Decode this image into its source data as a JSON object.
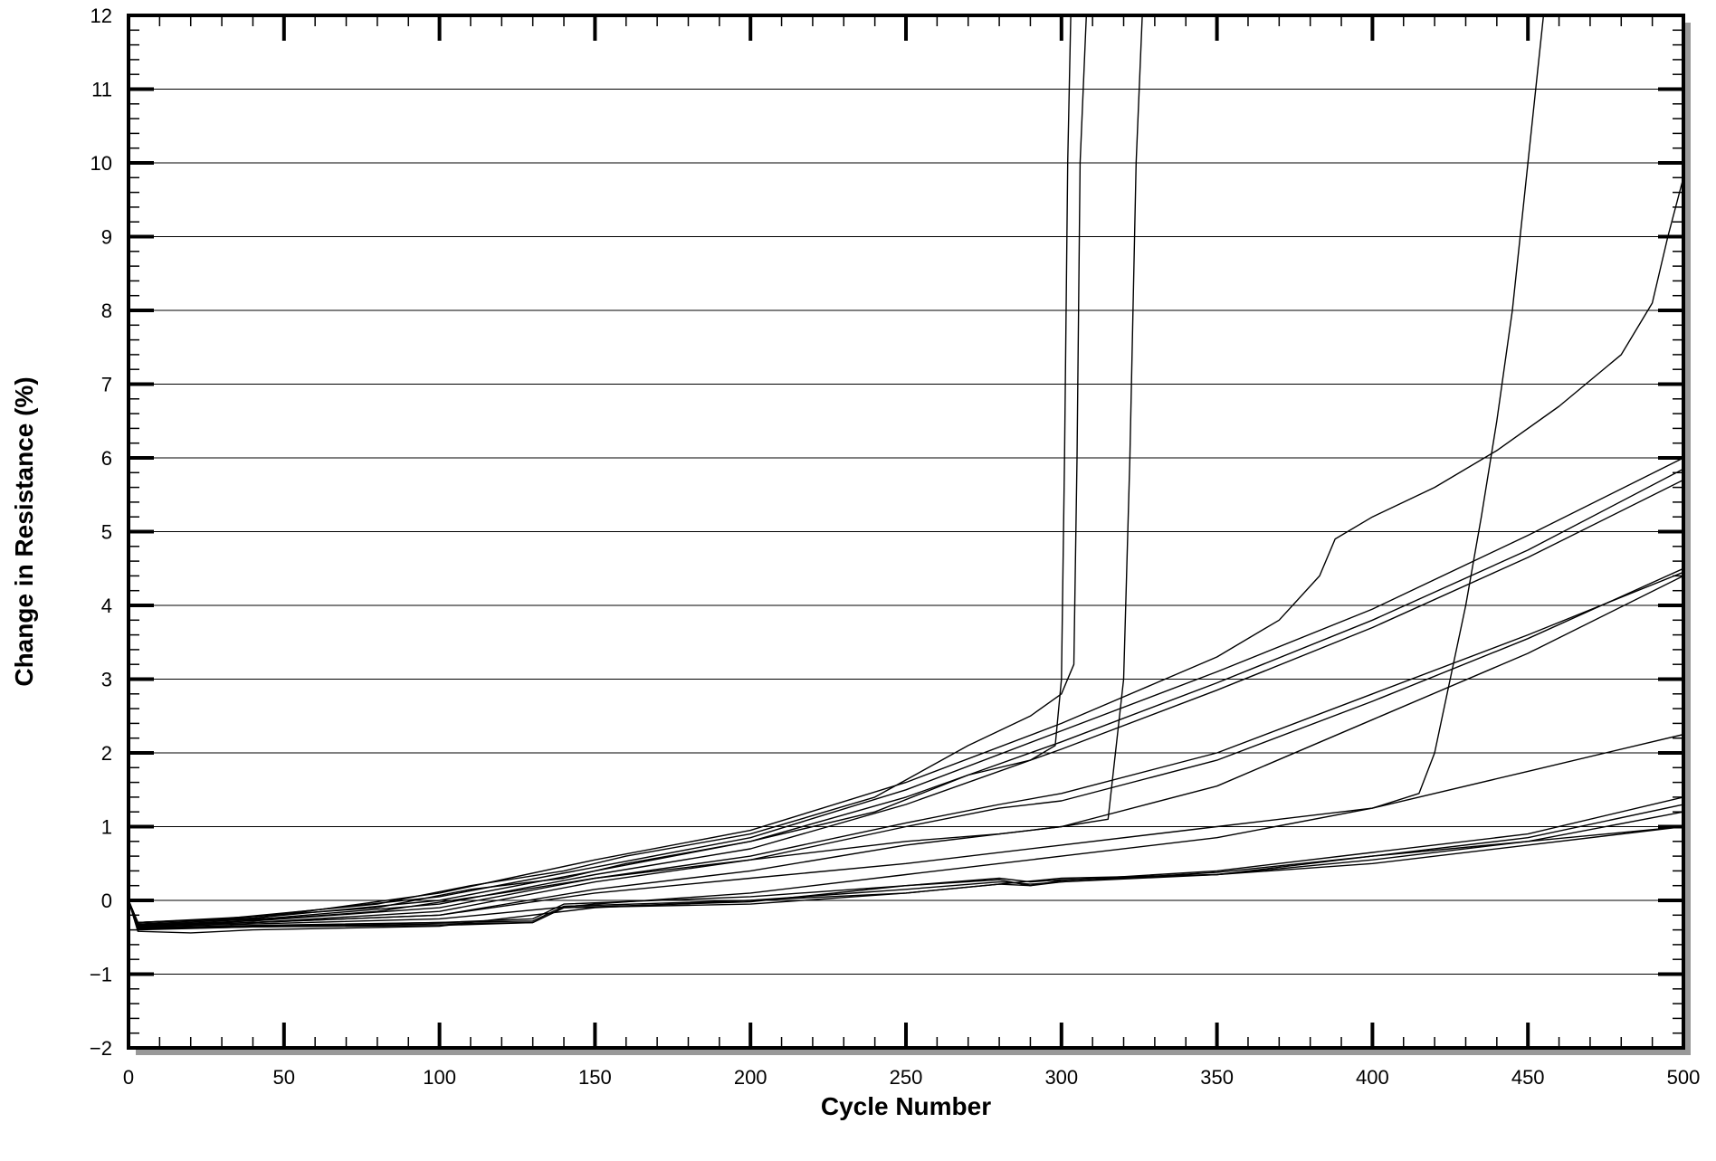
{
  "chart_data": {
    "type": "line",
    "title": "",
    "xlabel": "Cycle Number",
    "ylabel": "Change in Resistance (%)",
    "xlim": [
      0,
      500
    ],
    "ylim": [
      -2,
      12
    ],
    "x_ticks": [
      0,
      50,
      100,
      150,
      200,
      250,
      300,
      350,
      400,
      450,
      500
    ],
    "y_ticks": [
      -2,
      -1,
      0,
      1,
      2,
      3,
      4,
      5,
      6,
      7,
      8,
      9,
      10,
      11,
      12
    ],
    "x_minor_step": 10,
    "y_minor_step": 0.2,
    "grid": {
      "horizontal": true,
      "vertical": false
    },
    "legend": "none",
    "colors": {
      "line": "#000000",
      "grid": "#000000",
      "frame": "#000000",
      "shadow": "#999999"
    },
    "series": [
      {
        "x": [
          0,
          3,
          30,
          80,
          110,
          140,
          160,
          200,
          240,
          270,
          290,
          300,
          304,
          305,
          306,
          308
        ],
        "y": [
          0,
          -0.3,
          -0.25,
          -0.05,
          0.2,
          0.4,
          0.6,
          0.9,
          1.4,
          2.1,
          2.5,
          2.8,
          3.2,
          6,
          10,
          12
        ]
      },
      {
        "x": [
          0,
          3,
          30,
          80,
          110,
          140,
          160,
          200,
          240,
          270,
          290,
          298,
          300,
          301,
          302,
          303
        ],
        "y": [
          0,
          -0.3,
          -0.25,
          -0.1,
          0.15,
          0.3,
          0.5,
          0.8,
          1.2,
          1.7,
          1.9,
          2.1,
          3,
          6,
          10,
          12
        ]
      },
      {
        "x": [
          0,
          3,
          30,
          80,
          120,
          150,
          200,
          250,
          280,
          300,
          315,
          320,
          322,
          324,
          326
        ],
        "y": [
          0,
          -0.35,
          -0.3,
          -0.15,
          0.1,
          0.3,
          0.55,
          0.8,
          0.9,
          1.0,
          1.1,
          3,
          6,
          10,
          12
        ]
      },
      {
        "x": [
          0,
          3,
          40,
          100,
          150,
          200,
          250,
          300,
          350,
          370,
          383,
          388,
          400,
          420,
          440,
          460,
          480,
          490,
          495,
          500
        ],
        "y": [
          0,
          -0.3,
          -0.25,
          0.1,
          0.55,
          0.95,
          1.6,
          2.4,
          3.3,
          3.8,
          4.4,
          4.9,
          5.2,
          5.6,
          6.1,
          6.7,
          7.4,
          8.1,
          9.0,
          9.8
        ]
      },
      {
        "x": [
          0,
          3,
          40,
          100,
          150,
          200,
          250,
          300,
          350,
          400,
          450,
          500
        ],
        "y": [
          0,
          -0.3,
          -0.22,
          0.05,
          0.45,
          0.85,
          1.5,
          2.3,
          3.1,
          3.95,
          4.95,
          6.0
        ]
      },
      {
        "x": [
          0,
          3,
          40,
          100,
          150,
          200,
          250,
          300,
          350,
          400,
          450,
          500
        ],
        "y": [
          0,
          -0.3,
          -0.24,
          0.0,
          0.4,
          0.8,
          1.4,
          2.15,
          2.95,
          3.8,
          4.75,
          5.85
        ]
      },
      {
        "x": [
          0,
          3,
          40,
          100,
          150,
          200,
          250,
          300,
          350,
          400,
          450,
          500
        ],
        "y": [
          0,
          -0.32,
          -0.26,
          -0.05,
          0.35,
          0.7,
          1.3,
          2.05,
          2.85,
          3.7,
          4.65,
          5.7
        ]
      },
      {
        "x": [
          0,
          3,
          40,
          100,
          150,
          200,
          250,
          280,
          300,
          350,
          400,
          450,
          500
        ],
        "y": [
          0,
          -0.33,
          -0.28,
          -0.1,
          0.3,
          0.6,
          1.05,
          1.3,
          1.45,
          2.0,
          2.8,
          3.6,
          4.45
        ]
      },
      {
        "x": [
          0,
          3,
          40,
          100,
          150,
          200,
          250,
          280,
          300,
          350,
          400,
          450,
          500
        ],
        "y": [
          0,
          -0.34,
          -0.3,
          -0.15,
          0.25,
          0.55,
          1.0,
          1.25,
          1.35,
          1.9,
          2.7,
          3.55,
          4.5
        ]
      },
      {
        "x": [
          0,
          3,
          40,
          100,
          150,
          200,
          250,
          300,
          350,
          400,
          450,
          500
        ],
        "y": [
          0,
          -0.35,
          -0.3,
          -0.2,
          0.15,
          0.4,
          0.75,
          1.0,
          1.55,
          2.45,
          3.35,
          4.4
        ]
      },
      {
        "x": [
          0,
          3,
          40,
          100,
          150,
          200,
          250,
          300,
          350,
          400,
          415,
          420,
          425,
          430,
          435,
          440,
          445,
          450,
          455,
          460
        ],
        "y": [
          0,
          -0.35,
          -0.3,
          -0.2,
          0.1,
          0.3,
          0.5,
          0.75,
          1.0,
          1.25,
          1.45,
          2.0,
          3.0,
          4.0,
          5.2,
          6.5,
          8.0,
          10.0,
          12.0,
          12.5
        ]
      },
      {
        "x": [
          0,
          3,
          40,
          100,
          150,
          200,
          250,
          300,
          350,
          400,
          450,
          500
        ],
        "y": [
          0,
          -0.36,
          -0.32,
          -0.25,
          -0.05,
          0.1,
          0.35,
          0.6,
          0.85,
          1.25,
          1.75,
          2.25
        ]
      },
      {
        "x": [
          0,
          3,
          40,
          100,
          130,
          140,
          200,
          250,
          280,
          290,
          300,
          350,
          400,
          450,
          500
        ],
        "y": [
          0,
          -0.38,
          -0.35,
          -0.3,
          -0.25,
          -0.05,
          0.05,
          0.2,
          0.28,
          0.2,
          0.27,
          0.4,
          0.65,
          0.9,
          1.4
        ]
      },
      {
        "x": [
          0,
          3,
          40,
          100,
          130,
          140,
          200,
          250,
          280,
          290,
          300,
          350,
          400,
          450,
          500
        ],
        "y": [
          0,
          -0.37,
          -0.34,
          -0.3,
          -0.28,
          -0.08,
          0.0,
          0.15,
          0.25,
          0.22,
          0.25,
          0.38,
          0.6,
          0.85,
          1.3
        ]
      },
      {
        "x": [
          0,
          3,
          40,
          100,
          130,
          140,
          200,
          250,
          280,
          290,
          300,
          350,
          400,
          450,
          500
        ],
        "y": [
          0,
          -0.39,
          -0.36,
          -0.32,
          -0.3,
          -0.1,
          -0.05,
          0.1,
          0.22,
          0.2,
          0.25,
          0.35,
          0.55,
          0.8,
          1.2
        ]
      },
      {
        "x": [
          0,
          3,
          40,
          100,
          130,
          140,
          200,
          250,
          280,
          290,
          300,
          350,
          400,
          450,
          500
        ],
        "y": [
          0,
          -0.4,
          -0.36,
          -0.34,
          -0.3,
          -0.1,
          -0.02,
          0.2,
          0.3,
          0.25,
          0.28,
          0.35,
          0.5,
          0.75,
          1.0
        ]
      },
      {
        "x": [
          0,
          3,
          20,
          40,
          100,
          150,
          200,
          250,
          300,
          350,
          400,
          450,
          500
        ],
        "y": [
          0,
          -0.42,
          -0.44,
          -0.4,
          -0.35,
          -0.1,
          0.0,
          0.1,
          0.3,
          0.35,
          0.6,
          0.8,
          1.0
        ]
      }
    ]
  }
}
